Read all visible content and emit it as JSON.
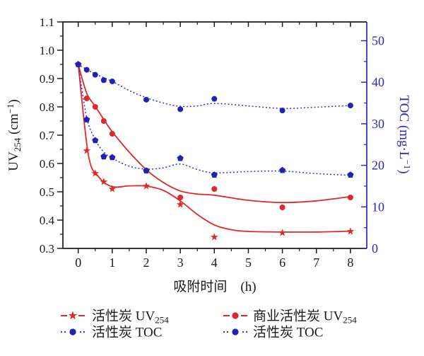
{
  "figure_background": "#ffffff",
  "chart_data": {
    "type": "line",
    "title": "",
    "xlabel": "吸附时间　(h)",
    "x_axis": {
      "min": 0,
      "max": 8,
      "minor_step": 0.5,
      "major_ticks": [
        0,
        1,
        2,
        3,
        4,
        5,
        6,
        7,
        8
      ],
      "tick_labels": [
        "0",
        "1",
        "2",
        "3",
        "4",
        "5",
        "6",
        "7",
        "8"
      ],
      "color": "#1a1a1a"
    },
    "y_left": {
      "label": "UV254 (cm−1)",
      "label_parts": [
        {
          "t": "UV"
        },
        {
          "t": "254",
          "sub": true
        },
        {
          "t": " (cm"
        },
        {
          "t": "−1",
          "sup": true
        },
        {
          "t": ")"
        }
      ],
      "min": 0.3,
      "max": 1.1,
      "minor_step": 0.05,
      "major_ticks": [
        0.3,
        0.4,
        0.5,
        0.6,
        0.7,
        0.8,
        0.9,
        1.0,
        1.1
      ],
      "tick_labels": [
        "0.3",
        "0.4",
        "0.5",
        "0.6",
        "0.7",
        "0.8",
        "0.9",
        "1.0",
        "1.1"
      ],
      "color": "#1a1a1a"
    },
    "y_right": {
      "label": "TOC (mg·L−1)",
      "label_parts": [
        {
          "t": "TOC (mg·L"
        },
        {
          "t": "−1",
          "sup": true
        },
        {
          "t": ")"
        }
      ],
      "min": 0,
      "max": 50,
      "minor_step": 5,
      "major_ticks": [
        0,
        10,
        20,
        30,
        40,
        50
      ],
      "tick_labels": [
        "0",
        "10",
        "20",
        "30",
        "40",
        "50"
      ],
      "color": "#2b2bb2"
    },
    "series": [
      {
        "id": "ac-uv254",
        "name": "活性炭 UV254",
        "axis": "left",
        "color": "#dc2a2a",
        "line_color": "#dc2a2a",
        "marker": "star",
        "line": "solid",
        "points": [
          [
            0,
            0.95
          ],
          [
            0.25,
            0.645
          ],
          [
            0.5,
            0.565
          ],
          [
            0.75,
            0.535
          ],
          [
            1,
            0.51
          ],
          [
            2,
            0.52
          ],
          [
            3,
            0.455
          ],
          [
            4,
            0.34
          ],
          [
            6,
            0.355
          ],
          [
            8,
            0.36
          ]
        ],
        "curve": [
          [
            0,
            0.95
          ],
          [
            0.3,
            0.63
          ],
          [
            0.6,
            0.553
          ],
          [
            1,
            0.518
          ],
          [
            1.5,
            0.521
          ],
          [
            2,
            0.52
          ],
          [
            2.5,
            0.505
          ],
          [
            3,
            0.468
          ],
          [
            3.5,
            0.42
          ],
          [
            4,
            0.383
          ],
          [
            4.5,
            0.366
          ],
          [
            5,
            0.36
          ],
          [
            6,
            0.358
          ],
          [
            7,
            0.358
          ],
          [
            8,
            0.361
          ]
        ]
      },
      {
        "id": "commercial-ac-uv254",
        "name": "商业活性炭 UV254",
        "axis": "left",
        "color": "#dc2a2a",
        "line_color": "#dc2a2a",
        "marker": "circle",
        "line": "solid",
        "points": [
          [
            0,
            0.95
          ],
          [
            0.25,
            0.83
          ],
          [
            0.5,
            0.8
          ],
          [
            0.75,
            0.75
          ],
          [
            1,
            0.705
          ],
          [
            2,
            0.575
          ],
          [
            3,
            0.48
          ],
          [
            4,
            0.51
          ],
          [
            6,
            0.445
          ],
          [
            8,
            0.48
          ]
        ],
        "curve": [
          [
            0,
            0.95
          ],
          [
            0.25,
            0.848
          ],
          [
            0.5,
            0.802
          ],
          [
            0.75,
            0.756
          ],
          [
            1,
            0.712
          ],
          [
            1.5,
            0.64
          ],
          [
            2,
            0.578
          ],
          [
            2.5,
            0.533
          ],
          [
            3,
            0.503
          ],
          [
            3.5,
            0.492
          ],
          [
            4,
            0.488
          ],
          [
            5,
            0.47
          ],
          [
            6,
            0.462
          ],
          [
            7,
            0.468
          ],
          [
            8,
            0.483
          ]
        ]
      },
      {
        "id": "ac-toc-circle",
        "name": "活性炭 TOC",
        "axis": "right",
        "color": "#2222b2",
        "line_color": "#3b3bc0",
        "marker": "circle",
        "line": "dotted",
        "points": [
          [
            0,
            44.3
          ],
          [
            0.25,
            43
          ],
          [
            0.5,
            41.8
          ],
          [
            0.75,
            40.5
          ],
          [
            1,
            40.2
          ],
          [
            2,
            35.8
          ],
          [
            3,
            33.5
          ],
          [
            4,
            36
          ],
          [
            6,
            33.2
          ],
          [
            8,
            34.4
          ]
        ],
        "curve": [
          [
            0,
            44.3
          ],
          [
            0.25,
            43.1
          ],
          [
            0.5,
            42
          ],
          [
            1,
            40.2
          ],
          [
            1.5,
            38
          ],
          [
            2,
            36.3
          ],
          [
            2.5,
            35
          ],
          [
            3,
            34.2
          ],
          [
            3.5,
            34.3
          ],
          [
            4,
            34.9
          ],
          [
            5,
            34.3
          ],
          [
            6,
            33.7
          ],
          [
            7,
            34
          ],
          [
            8,
            34.4
          ]
        ]
      },
      {
        "id": "ac-toc-pentagon",
        "name": "活性炭 TOC",
        "axis": "right",
        "color": "#2222b2",
        "line_color": "#3b3bc0",
        "marker": "pentagon",
        "line": "dotted",
        "points": [
          [
            0,
            44.3
          ],
          [
            0.25,
            31
          ],
          [
            0.5,
            26
          ],
          [
            0.75,
            22.1
          ],
          [
            1,
            21.9
          ],
          [
            2,
            18.7
          ],
          [
            3,
            21.7
          ],
          [
            4,
            17.7
          ],
          [
            6,
            18.8
          ],
          [
            8,
            17.7
          ]
        ],
        "curve": [
          [
            0,
            44.3
          ],
          [
            0.25,
            31.5
          ],
          [
            0.5,
            26.2
          ],
          [
            0.75,
            23.2
          ],
          [
            1,
            21.7
          ],
          [
            1.5,
            19.8
          ],
          [
            2,
            19.1
          ],
          [
            2.5,
            19.4
          ],
          [
            3,
            20.3
          ],
          [
            3.5,
            19
          ],
          [
            4,
            18.2
          ],
          [
            5,
            18.5
          ],
          [
            6,
            18.6
          ],
          [
            7,
            18
          ],
          [
            8,
            17.6
          ]
        ]
      }
    ],
    "legend": {
      "position": "bottom",
      "entries": [
        {
          "marker": "star",
          "line": "dash",
          "color": "#dc2a2a",
          "label_parts": [
            {
              "t": "活性炭  UV"
            },
            {
              "t": "254",
              "sub": true
            }
          ]
        },
        {
          "marker": "circle",
          "line": "dash",
          "color": "#dc2a2a",
          "label_parts": [
            {
              "t": "商业活性炭 UV"
            },
            {
              "t": "254",
              "sub": true
            }
          ]
        },
        {
          "marker": "circle",
          "line": "dot",
          "color": "#2222b2",
          "label_parts": [
            {
              "t": "活性炭  TOC"
            }
          ]
        },
        {
          "marker": "circle",
          "line": "dot",
          "color": "#2222b2",
          "label_parts": [
            {
              "t": "活性炭 TOC"
            }
          ]
        }
      ]
    },
    "grid": false
  }
}
